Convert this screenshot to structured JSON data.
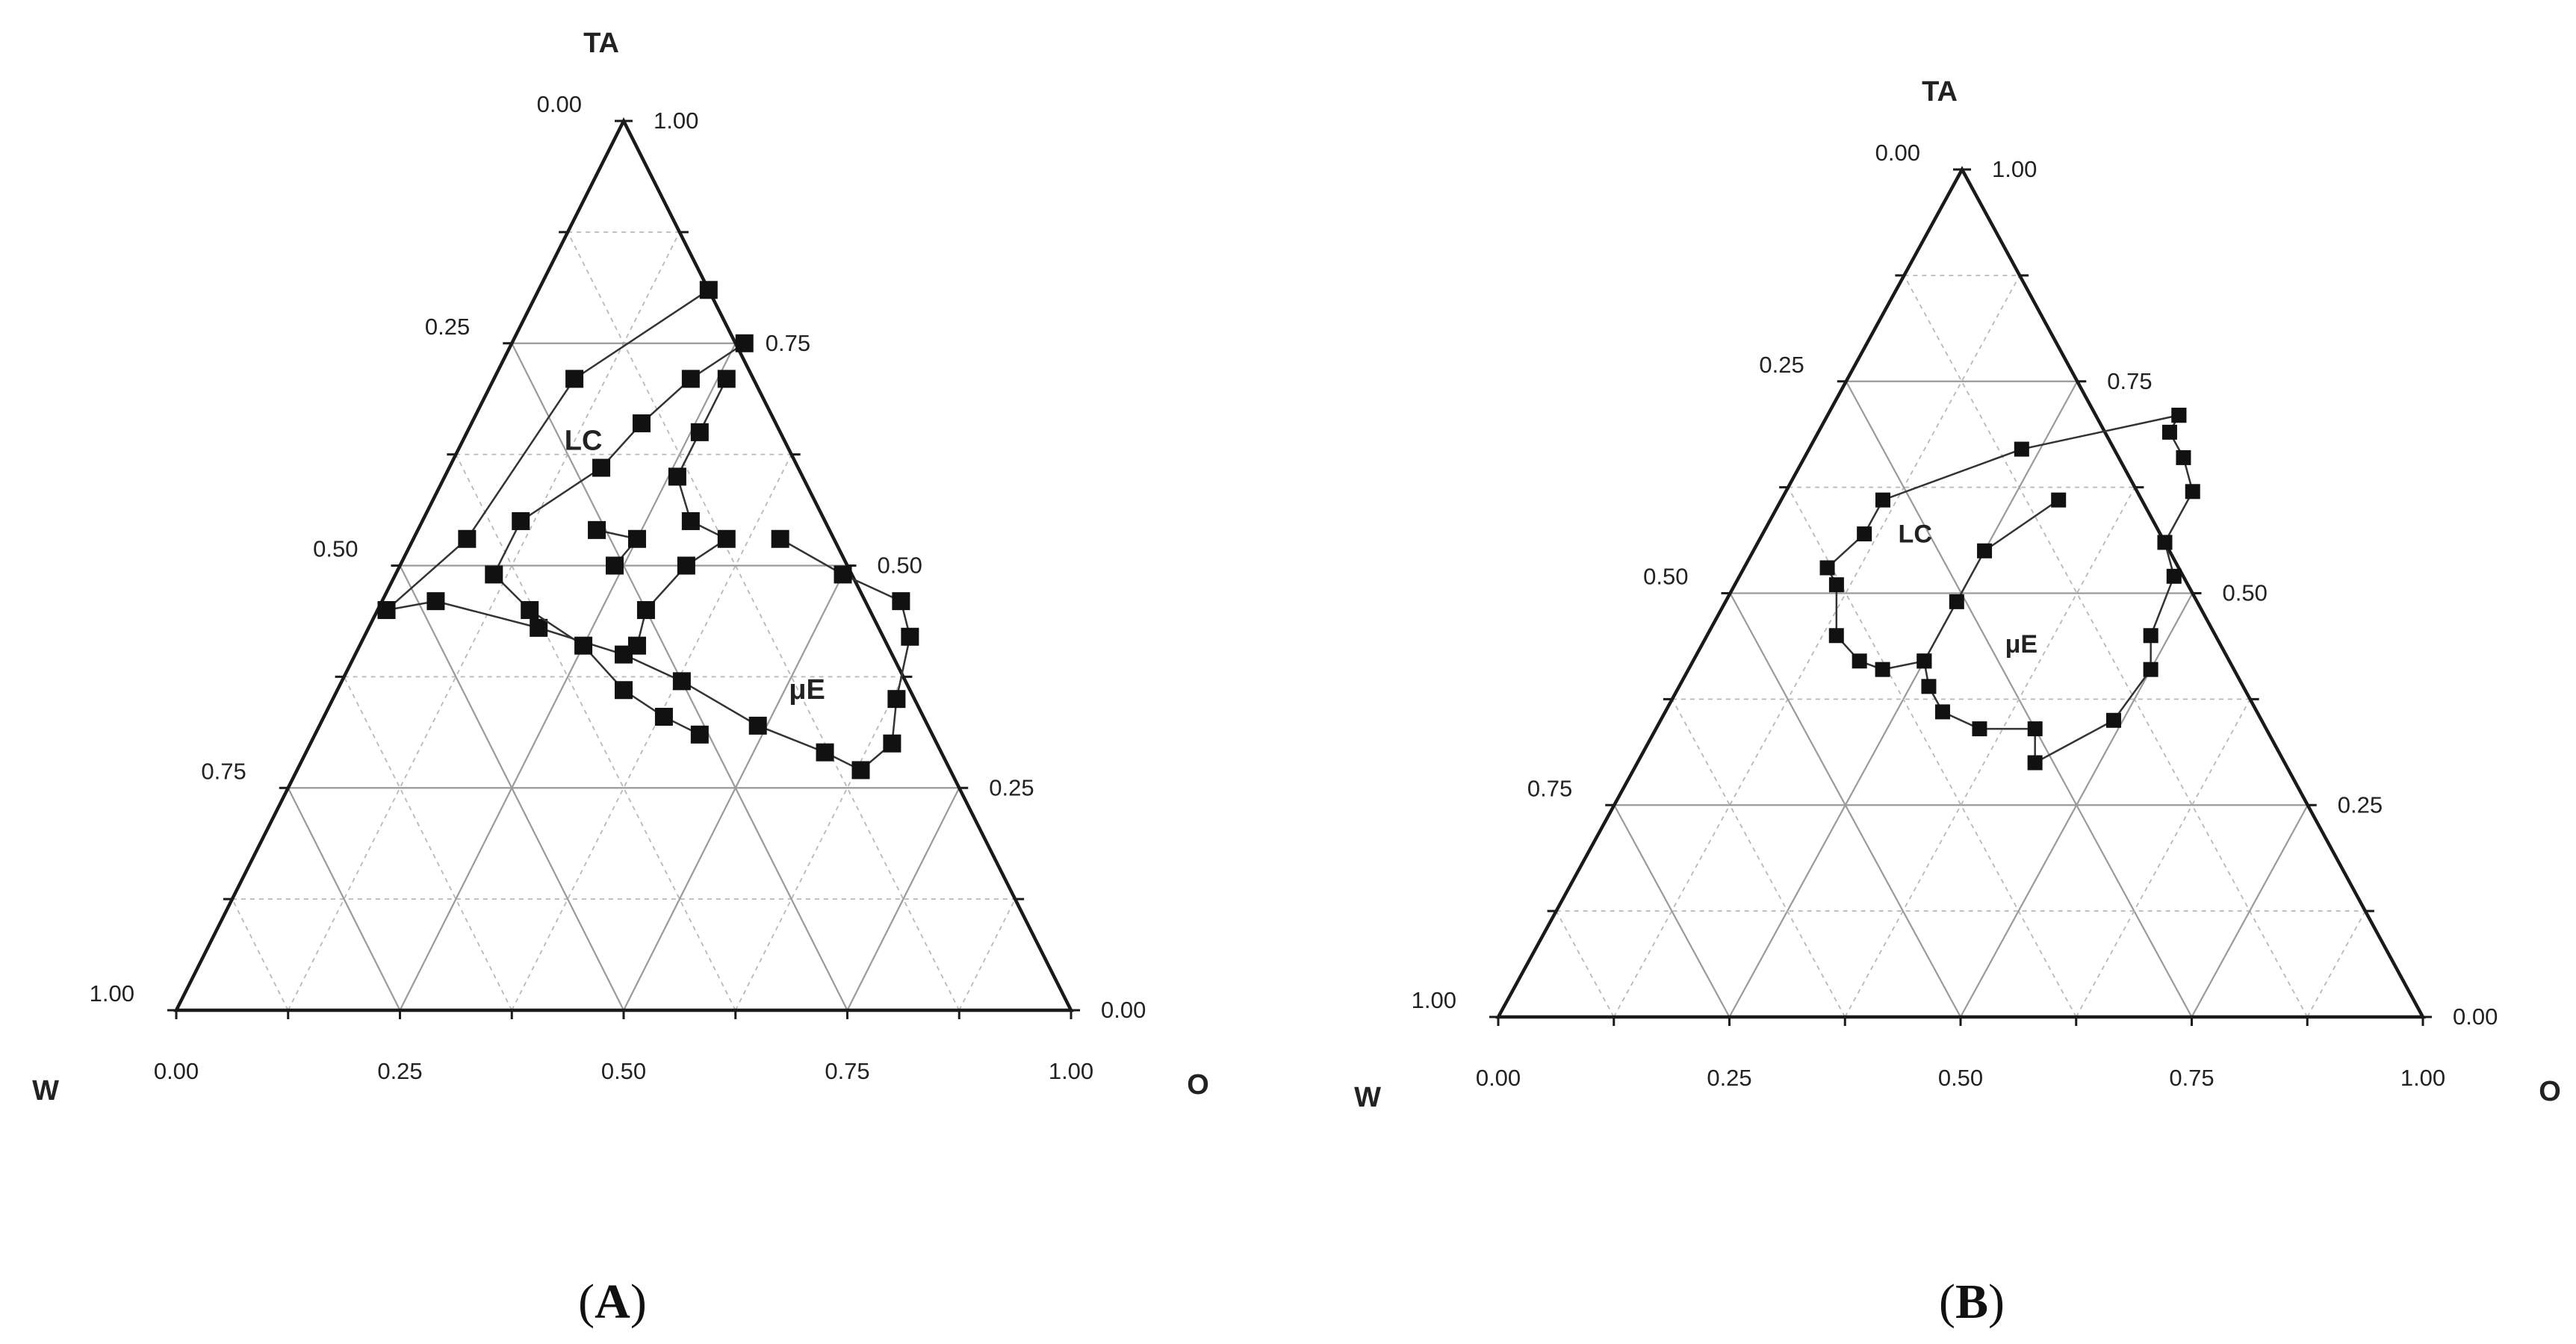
{
  "chart_data": [
    {
      "type": "scatter",
      "panel": "(A)",
      "panel_letter": "A",
      "vertices": {
        "top": "TA",
        "left": "W",
        "right": "O"
      },
      "ticks": {
        "bottom": [
          "0.00",
          "0.25",
          "0.50",
          "0.75",
          "1.00"
        ],
        "left": [
          "1.00",
          "0.75",
          "0.50",
          "0.25",
          "0.00"
        ],
        "right": [
          "0.00",
          "0.25",
          "0.50",
          "0.75",
          "1.00"
        ]
      },
      "region_labels": [
        {
          "text": "LC",
          "TA": 0.63,
          "O": 0.14
        },
        {
          "text": "μE",
          "TA": 0.35,
          "O": 0.53
        }
      ],
      "series": [
        {
          "points": [
            {
              "TA": 0.81,
              "O": 0.19
            },
            {
              "TA": 0.71,
              "O": 0.09
            },
            {
              "TA": 0.53,
              "O": 0.06
            },
            {
              "TA": 0.45,
              "O": 0.01
            },
            {
              "TA": 0.46,
              "O": 0.06
            },
            {
              "TA": 0.43,
              "O": 0.19
            },
            {
              "TA": 0.4,
              "O": 0.3
            },
            {
              "TA": 0.37,
              "O": 0.38
            },
            {
              "TA": 0.32,
              "O": 0.49
            },
            {
              "TA": 0.29,
              "O": 0.58
            },
            {
              "TA": 0.27,
              "O": 0.63
            },
            {
              "TA": 0.3,
              "O": 0.65
            },
            {
              "TA": 0.35,
              "O": 0.63
            },
            {
              "TA": 0.42,
              "O": 0.61
            },
            {
              "TA": 0.46,
              "O": 0.58
            },
            {
              "TA": 0.49,
              "O": 0.5
            },
            {
              "TA": 0.53,
              "O": 0.41
            }
          ]
        },
        {
          "points": [
            {
              "TA": 0.75,
              "O": 0.26
            },
            {
              "TA": 0.71,
              "O": 0.22
            },
            {
              "TA": 0.66,
              "O": 0.19
            },
            {
              "TA": 0.61,
              "O": 0.17
            },
            {
              "TA": 0.55,
              "O": 0.11
            },
            {
              "TA": 0.49,
              "O": 0.11
            },
            {
              "TA": 0.45,
              "O": 0.17
            },
            {
              "TA": 0.41,
              "O": 0.25
            },
            {
              "TA": 0.36,
              "O": 0.32
            },
            {
              "TA": 0.33,
              "O": 0.38
            },
            {
              "TA": 0.31,
              "O": 0.43
            }
          ]
        },
        {
          "points": [
            {
              "TA": 0.71,
              "O": 0.26
            },
            {
              "TA": 0.65,
              "O": 0.26
            },
            {
              "TA": 0.6,
              "O": 0.26
            },
            {
              "TA": 0.55,
              "O": 0.3
            },
            {
              "TA": 0.53,
              "O": 0.35
            },
            {
              "TA": 0.5,
              "O": 0.32
            },
            {
              "TA": 0.45,
              "O": 0.3
            },
            {
              "TA": 0.41,
              "O": 0.31
            }
          ]
        },
        {
          "points": [
            {
              "TA": 0.54,
              "O": 0.2
            },
            {
              "TA": 0.53,
              "O": 0.25
            },
            {
              "TA": 0.5,
              "O": 0.24
            }
          ]
        }
      ]
    },
    {
      "type": "scatter",
      "panel": "(B)",
      "panel_letter": "B",
      "vertices": {
        "top": "TA",
        "left": "W",
        "right": "O"
      },
      "ticks": {
        "bottom": [
          "0.00",
          "0.25",
          "0.50",
          "0.75",
          "1.00"
        ],
        "left": [
          "1.00",
          "0.75",
          "0.50",
          "0.25",
          "0.00"
        ],
        "right": [
          "0.00",
          "0.25",
          "0.50",
          "0.75",
          "1.00"
        ]
      },
      "region_labels": [
        {
          "text": "LC",
          "TA": 0.56,
          "O": 0.17
        },
        {
          "text": "μE",
          "TA": 0.43,
          "O": 0.35
        }
      ],
      "series": [
        {
          "points": [
            {
              "TA": 0.71,
              "O": 0.38
            },
            {
              "TA": 0.69,
              "O": 0.38
            },
            {
              "TA": 0.66,
              "O": 0.41
            },
            {
              "TA": 0.62,
              "O": 0.44
            },
            {
              "TA": 0.56,
              "O": 0.44
            },
            {
              "TA": 0.52,
              "O": 0.47
            },
            {
              "TA": 0.45,
              "O": 0.48
            },
            {
              "TA": 0.41,
              "O": 0.5
            },
            {
              "TA": 0.35,
              "O": 0.49
            },
            {
              "TA": 0.3,
              "O": 0.43
            },
            {
              "TA": 0.34,
              "O": 0.41
            },
            {
              "TA": 0.34,
              "O": 0.35
            },
            {
              "TA": 0.36,
              "O": 0.3
            },
            {
              "TA": 0.39,
              "O": 0.27
            },
            {
              "TA": 0.42,
              "O": 0.25
            },
            {
              "TA": 0.41,
              "O": 0.21
            },
            {
              "TA": 0.42,
              "O": 0.18
            },
            {
              "TA": 0.45,
              "O": 0.14
            },
            {
              "TA": 0.51,
              "O": 0.11
            },
            {
              "TA": 0.53,
              "O": 0.09
            },
            {
              "TA": 0.57,
              "O": 0.11
            },
            {
              "TA": 0.61,
              "O": 0.11
            },
            {
              "TA": 0.67,
              "O": 0.23
            },
            {
              "TA": 0.71,
              "O": 0.38
            }
          ]
        },
        {
          "points": [
            {
              "TA": 0.61,
              "O": 0.3
            },
            {
              "TA": 0.55,
              "O": 0.25
            },
            {
              "TA": 0.49,
              "O": 0.25
            },
            {
              "TA": 0.42,
              "O": 0.25
            }
          ]
        }
      ]
    }
  ]
}
